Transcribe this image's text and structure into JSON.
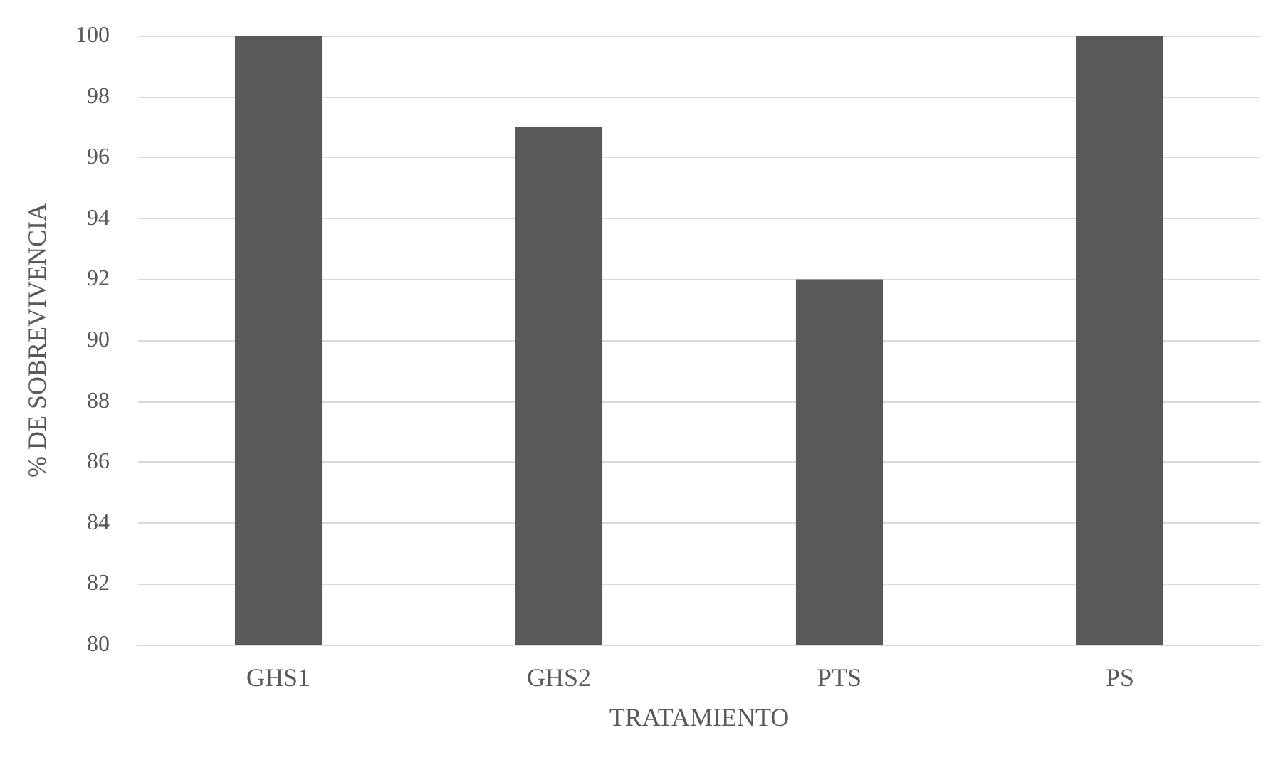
{
  "chart_data": {
    "type": "bar",
    "xlabel": "TRATAMIENTO",
    "ylabel": "% DE SOBREVIVENCIA",
    "categories": [
      "GHS1",
      "GHS2",
      "PTS",
      "PS"
    ],
    "values": [
      100,
      97,
      92,
      100
    ],
    "color": "#595959",
    "ylim": [
      80,
      100
    ],
    "yticks": [
      80,
      82,
      84,
      86,
      88,
      90,
      92,
      94,
      96,
      98,
      100
    ],
    "grid": "y"
  }
}
